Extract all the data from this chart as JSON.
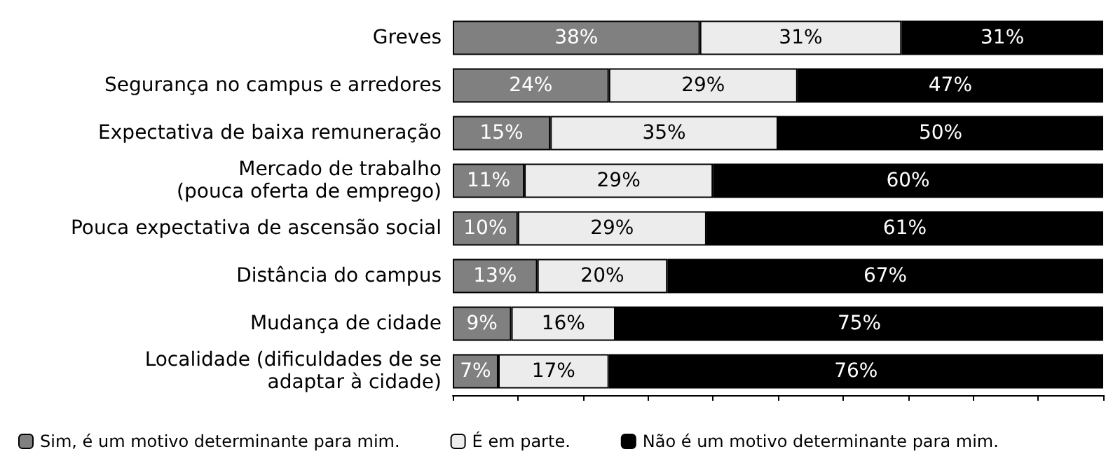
{
  "chart_data": {
    "type": "bar",
    "orientation": "horizontal",
    "stacked": true,
    "legend": "bottom",
    "tick_labels": "y",
    "xlim": [
      0,
      100
    ],
    "categories": [
      "Greves",
      "Segurança no campus e arredores",
      "Expectativa de baixa remuneração",
      "Mercado de trabalho\n(pouca oferta de emprego)",
      "Pouca expectativa de ascensão social",
      "Distância do campus",
      "Mudança de cidade",
      "Localidade (dificuldades de se\nadaptar à cidade)"
    ],
    "series": [
      {
        "name": "Sim, é um motivo determinante para mim.",
        "color": "#808080",
        "values": [
          38,
          24,
          15,
          11,
          10,
          13,
          9,
          7
        ],
        "value_labels": [
          "38%",
          "24%",
          "15%",
          "11%",
          "10%",
          "13%",
          "9%",
          "7%"
        ]
      },
      {
        "name": "É em parte.",
        "color": "#ececec",
        "values": [
          31,
          29,
          35,
          29,
          29,
          20,
          16,
          17
        ],
        "value_labels": [
          "31%",
          "29%",
          "35%",
          "29%",
          "29%",
          "20%",
          "16%",
          "17%"
        ]
      },
      {
        "name": "Não é um motivo determinante para mim.",
        "color": "#000000",
        "values": [
          31,
          47,
          50,
          60,
          61,
          67,
          75,
          76
        ],
        "value_labels": [
          "31%",
          "47%",
          "50%",
          "60%",
          "61%",
          "67%",
          "75%",
          "76%"
        ]
      }
    ]
  }
}
